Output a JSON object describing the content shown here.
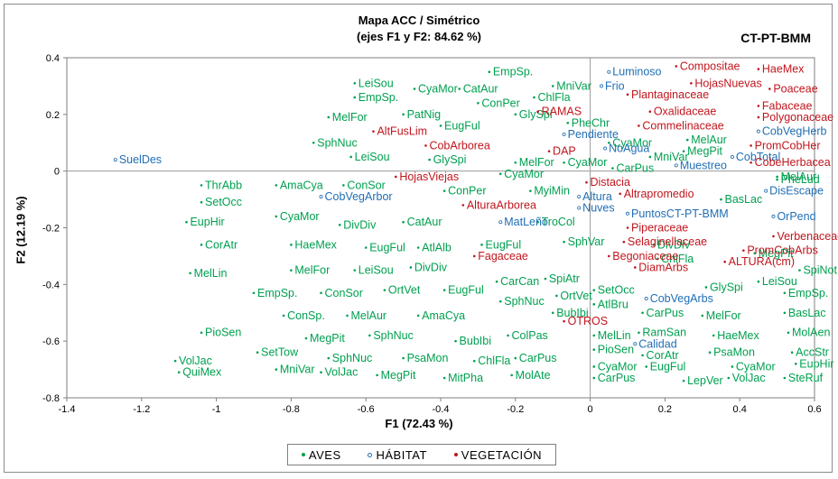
{
  "chart_data": {
    "type": "scatter",
    "title": "Mapa ACC / Simétrico",
    "subtitle": "(ejes F1 y F2: 84.62 %)",
    "corner_label": "CT-PT-BMM",
    "xlabel": "F1 (72.43 %)",
    "ylabel": "F2 (12.19 %)",
    "xlim": [
      -1.4,
      0.6
    ],
    "ylim": [
      -0.8,
      0.4
    ],
    "xticks": [
      -1.4,
      -1.2,
      -1,
      -0.8,
      -0.6,
      -0.4,
      -0.2,
      0,
      0.2,
      0.4,
      0.6
    ],
    "yticks": [
      -0.8,
      -0.6,
      -0.4,
      -0.2,
      0,
      0.2,
      0.4
    ],
    "xtick_labels": [
      "-1.4",
      "-1.2",
      "-1",
      "-0.8",
      "-0.6",
      "-0.4",
      "-0.2",
      "0",
      "0.2",
      "0.4",
      "0.6"
    ],
    "ytick_labels": [
      "-0.8",
      "-0.6",
      "-0.4",
      "-0.2",
      "0",
      "0.2",
      "0.4"
    ],
    "grid": false,
    "legend_position": "bottom-center",
    "series": [
      {
        "name": "AVES",
        "color": "#00a050",
        "labels": [
          {
            "text": "EmpSp.",
            "x": -0.27,
            "y": 0.35
          },
          {
            "text": "LeiSou",
            "x": -0.63,
            "y": 0.31
          },
          {
            "text": "CyaMor",
            "x": -0.47,
            "y": 0.29
          },
          {
            "text": "CatAur",
            "x": -0.35,
            "y": 0.29
          },
          {
            "text": "MniVar",
            "x": -0.1,
            "y": 0.3
          },
          {
            "text": "EmpSp.",
            "x": -0.63,
            "y": 0.26
          },
          {
            "text": "ChlFla",
            "x": -0.15,
            "y": 0.26
          },
          {
            "text": "ConPer",
            "x": -0.3,
            "y": 0.24
          },
          {
            "text": "PatNig",
            "x": -0.5,
            "y": 0.2
          },
          {
            "text": "GlySpi",
            "x": -0.2,
            "y": 0.2
          },
          {
            "text": "MelFor",
            "x": -0.7,
            "y": 0.19
          },
          {
            "text": "EugFul",
            "x": -0.4,
            "y": 0.16
          },
          {
            "text": "PheChr",
            "x": -0.06,
            "y": 0.17
          },
          {
            "text": "SphNuc",
            "x": -0.74,
            "y": 0.1
          },
          {
            "text": "CyaMor",
            "x": 0.05,
            "y": 0.1
          },
          {
            "text": "MelAur",
            "x": 0.26,
            "y": 0.11
          },
          {
            "text": "MegPit",
            "x": 0.25,
            "y": 0.07
          },
          {
            "text": "LeiSou",
            "x": -0.64,
            "y": 0.05
          },
          {
            "text": "GlySpi",
            "x": -0.43,
            "y": 0.04
          },
          {
            "text": "MelFor",
            "x": -0.2,
            "y": 0.03
          },
          {
            "text": "CyaMor",
            "x": -0.07,
            "y": 0.03
          },
          {
            "text": "MniVar",
            "x": 0.16,
            "y": 0.05
          },
          {
            "text": "CarPus",
            "x": 0.06,
            "y": 0.01
          },
          {
            "text": "CyaMor",
            "x": -0.24,
            "y": -0.01
          },
          {
            "text": "PheLud",
            "x": 0.5,
            "y": -0.03
          },
          {
            "text": "ThrAbb",
            "x": -1.04,
            "y": -0.05
          },
          {
            "text": "AmaCya",
            "x": -0.84,
            "y": -0.05
          },
          {
            "text": "ConSor",
            "x": -0.66,
            "y": -0.05
          },
          {
            "text": "ConPer",
            "x": -0.39,
            "y": -0.07
          },
          {
            "text": "MyiMin",
            "x": -0.16,
            "y": -0.07
          },
          {
            "text": "BasLac",
            "x": 0.35,
            "y": -0.1
          },
          {
            "text": "MelAur",
            "x": 0.5,
            "y": -0.02
          },
          {
            "text": "SetOcc",
            "x": -1.04,
            "y": -0.11
          },
          {
            "text": "CyaMor",
            "x": -0.84,
            "y": -0.16
          },
          {
            "text": "DivDiv",
            "x": -0.67,
            "y": -0.19
          },
          {
            "text": "CatAur",
            "x": -0.5,
            "y": -0.18
          },
          {
            "text": "TroCol",
            "x": -0.14,
            "y": -0.18
          },
          {
            "text": "EupHir",
            "x": -1.08,
            "y": -0.18
          },
          {
            "text": "CorAtr",
            "x": -1.04,
            "y": -0.26
          },
          {
            "text": "HaeMex",
            "x": -0.8,
            "y": -0.26
          },
          {
            "text": "EugFul",
            "x": -0.6,
            "y": -0.27
          },
          {
            "text": "AtlAlb",
            "x": -0.46,
            "y": -0.27
          },
          {
            "text": "EugFul",
            "x": -0.29,
            "y": -0.26
          },
          {
            "text": "SphVar",
            "x": -0.07,
            "y": -0.25
          },
          {
            "text": "DivDiv",
            "x": 0.17,
            "y": -0.26
          },
          {
            "text": "ChlFla",
            "x": 0.18,
            "y": -0.31
          },
          {
            "text": "MegPit",
            "x": 0.44,
            "y": -0.29
          },
          {
            "text": "MelLin",
            "x": -1.07,
            "y": -0.36
          },
          {
            "text": "MelFor",
            "x": -0.8,
            "y": -0.35
          },
          {
            "text": "LeiSou",
            "x": -0.63,
            "y": -0.35
          },
          {
            "text": "DivDiv",
            "x": -0.48,
            "y": -0.34
          },
          {
            "text": "SpiNot",
            "x": 0.56,
            "y": -0.35
          },
          {
            "text": "CarCan",
            "x": -0.25,
            "y": -0.39
          },
          {
            "text": "SpiAtr",
            "x": -0.12,
            "y": -0.38
          },
          {
            "text": "LeiSou",
            "x": 0.45,
            "y": -0.39
          },
          {
            "text": "GlySpi",
            "x": 0.31,
            "y": -0.41
          },
          {
            "text": "EmpSp.",
            "x": -0.9,
            "y": -0.43
          },
          {
            "text": "ConSor",
            "x": -0.72,
            "y": -0.43
          },
          {
            "text": "OrtVet",
            "x": -0.55,
            "y": -0.42
          },
          {
            "text": "EugFul",
            "x": -0.39,
            "y": -0.42
          },
          {
            "text": "SetOcc",
            "x": 0.01,
            "y": -0.42
          },
          {
            "text": "EmpSp.",
            "x": 0.52,
            "y": -0.43
          },
          {
            "text": "OrtVet",
            "x": -0.09,
            "y": -0.44
          },
          {
            "text": "SphNuc",
            "x": -0.24,
            "y": -0.46
          },
          {
            "text": "AtlBru",
            "x": 0.01,
            "y": -0.47
          },
          {
            "text": "ConSp.",
            "x": -0.82,
            "y": -0.51
          },
          {
            "text": "MelAur",
            "x": -0.65,
            "y": -0.51
          },
          {
            "text": "AmaCya",
            "x": -0.46,
            "y": -0.51
          },
          {
            "text": "BubIbi",
            "x": -0.1,
            "y": -0.5
          },
          {
            "text": "CarPus",
            "x": 0.14,
            "y": -0.5
          },
          {
            "text": "MelFor",
            "x": 0.3,
            "y": -0.51
          },
          {
            "text": "BasLac",
            "x": 0.52,
            "y": -0.5
          },
          {
            "text": "PioSen",
            "x": -1.04,
            "y": -0.57
          },
          {
            "text": "MegPit",
            "x": -0.76,
            "y": -0.59
          },
          {
            "text": "SphNuc",
            "x": -0.59,
            "y": -0.58
          },
          {
            "text": "BubIbi",
            "x": -0.36,
            "y": -0.6
          },
          {
            "text": "ColPas",
            "x": -0.22,
            "y": -0.58
          },
          {
            "text": "MelLin",
            "x": 0.01,
            "y": -0.58
          },
          {
            "text": "RamSan",
            "x": 0.13,
            "y": -0.57
          },
          {
            "text": "HaeMex",
            "x": 0.33,
            "y": -0.58
          },
          {
            "text": "MolAen",
            "x": 0.53,
            "y": -0.57
          },
          {
            "text": "SetTow",
            "x": -0.89,
            "y": -0.64
          },
          {
            "text": "PioSen",
            "x": 0.01,
            "y": -0.63
          },
          {
            "text": "CorAtr",
            "x": 0.14,
            "y": -0.65
          },
          {
            "text": "PsaMon",
            "x": 0.32,
            "y": -0.64
          },
          {
            "text": "AccStr",
            "x": 0.54,
            "y": -0.64
          },
          {
            "text": "VolJac",
            "x": -1.11,
            "y": -0.67
          },
          {
            "text": "SphNuc",
            "x": -0.7,
            "y": -0.66
          },
          {
            "text": "PsaMon",
            "x": -0.5,
            "y": -0.66
          },
          {
            "text": "ChlFla",
            "x": -0.31,
            "y": -0.67
          },
          {
            "text": "CarPus",
            "x": -0.2,
            "y": -0.66
          },
          {
            "text": "EupHir",
            "x": 0.55,
            "y": -0.68
          },
          {
            "text": "QuiMex",
            "x": -1.1,
            "y": -0.71
          },
          {
            "text": "MniVar",
            "x": -0.84,
            "y": -0.7
          },
          {
            "text": "VolJac",
            "x": -0.72,
            "y": -0.71
          },
          {
            "text": "MegPit",
            "x": -0.57,
            "y": -0.72
          },
          {
            "text": "MitPha",
            "x": -0.39,
            "y": -0.73
          },
          {
            "text": "MolAte",
            "x": -0.21,
            "y": -0.72
          },
          {
            "text": "CyaMor",
            "x": 0.01,
            "y": -0.69
          },
          {
            "text": "EugFul",
            "x": 0.15,
            "y": -0.69
          },
          {
            "text": "CyaMor",
            "x": 0.38,
            "y": -0.69
          },
          {
            "text": "CarPus",
            "x": 0.01,
            "y": -0.73
          },
          {
            "text": "LepVer",
            "x": 0.25,
            "y": -0.74
          },
          {
            "text": "VolJac",
            "x": 0.37,
            "y": -0.73
          },
          {
            "text": "SteRuf",
            "x": 0.52,
            "y": -0.73
          }
        ]
      },
      {
        "name": "HÁBITAT",
        "color": "#1f6eb4",
        "labels": [
          {
            "text": "Luminoso",
            "x": 0.05,
            "y": 0.35
          },
          {
            "text": "Frio",
            "x": 0.03,
            "y": 0.3
          },
          {
            "text": "Pendiente",
            "x": -0.07,
            "y": 0.13
          },
          {
            "text": "NoAgua",
            "x": 0.04,
            "y": 0.08
          },
          {
            "text": "SuelDes",
            "x": -1.27,
            "y": 0.04
          },
          {
            "text": "Muestreo",
            "x": 0.23,
            "y": 0.02
          },
          {
            "text": "CobVegHerb",
            "x": 0.45,
            "y": 0.14
          },
          {
            "text": "CobTotal",
            "x": 0.38,
            "y": 0.05
          },
          {
            "text": "CobVegArbor",
            "x": -0.72,
            "y": -0.09
          },
          {
            "text": "Altura",
            "x": -0.03,
            "y": -0.09
          },
          {
            "text": "Nuves",
            "x": -0.03,
            "y": -0.13
          },
          {
            "text": "DisEscape",
            "x": 0.47,
            "y": -0.07
          },
          {
            "text": "PuntosCT-PT-BMM",
            "x": 0.1,
            "y": -0.15
          },
          {
            "text": "OrPend",
            "x": 0.49,
            "y": -0.16
          },
          {
            "text": "MatLeño",
            "x": -0.24,
            "y": -0.18
          },
          {
            "text": "CobVegArbs",
            "x": 0.15,
            "y": -0.45
          },
          {
            "text": "Calidad",
            "x": 0.12,
            "y": -0.61
          }
        ]
      },
      {
        "name": "VEGETACIÓN",
        "color": "#c0161e",
        "labels": [
          {
            "text": "Compositae",
            "x": 0.23,
            "y": 0.37
          },
          {
            "text": "HaeMex",
            "x": 0.45,
            "y": 0.36
          },
          {
            "text": "HojasNuevas",
            "x": 0.27,
            "y": 0.31
          },
          {
            "text": "Poaceae",
            "x": 0.48,
            "y": 0.29
          },
          {
            "text": "Plantaginaceae",
            "x": 0.1,
            "y": 0.27
          },
          {
            "text": "RAMAS",
            "x": -0.14,
            "y": 0.21
          },
          {
            "text": "Oxalidaceae",
            "x": 0.16,
            "y": 0.21
          },
          {
            "text": "Fabaceae",
            "x": 0.45,
            "y": 0.23
          },
          {
            "text": "Polygonaceae",
            "x": 0.45,
            "y": 0.19
          },
          {
            "text": "Commelinaceae",
            "x": 0.13,
            "y": 0.16
          },
          {
            "text": "AltFusLim",
            "x": -0.58,
            "y": 0.14
          },
          {
            "text": "PromCobHer",
            "x": 0.43,
            "y": 0.09
          },
          {
            "text": "CobArborea",
            "x": -0.44,
            "y": 0.09
          },
          {
            "text": "DAP",
            "x": -0.11,
            "y": 0.07
          },
          {
            "text": "CobeHerbacea",
            "x": 0.43,
            "y": 0.03
          },
          {
            "text": "HojasViejas",
            "x": -0.52,
            "y": -0.02
          },
          {
            "text": "Distacia",
            "x": -0.01,
            "y": -0.04
          },
          {
            "text": "Altrapromedio",
            "x": 0.08,
            "y": -0.08
          },
          {
            "text": "AlturaArborea",
            "x": -0.34,
            "y": -0.12
          },
          {
            "text": "Piperaceae",
            "x": 0.1,
            "y": -0.2
          },
          {
            "text": "Selaginellaceae",
            "x": 0.09,
            "y": -0.25
          },
          {
            "text": "Verbenaceae",
            "x": 0.49,
            "y": -0.23
          },
          {
            "text": "PromCobArbs",
            "x": 0.41,
            "y": -0.28
          },
          {
            "text": "Fagaceae",
            "x": -0.31,
            "y": -0.3
          },
          {
            "text": "Begoniaceae",
            "x": 0.05,
            "y": -0.3
          },
          {
            "text": "ALTURA(cm)",
            "x": 0.36,
            "y": -0.32
          },
          {
            "text": "DiamArbs",
            "x": 0.12,
            "y": -0.34
          },
          {
            "text": "OTROS",
            "x": -0.07,
            "y": -0.53
          }
        ]
      }
    ]
  }
}
